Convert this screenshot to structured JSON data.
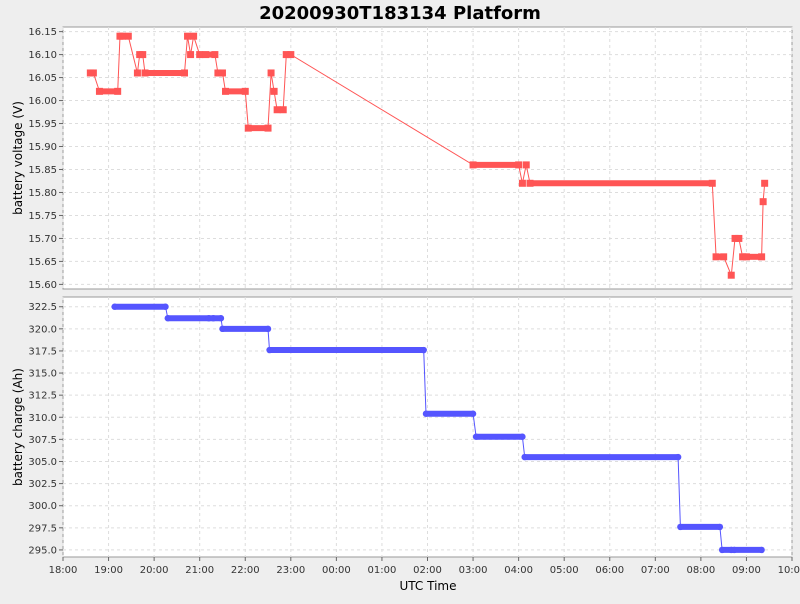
{
  "title": "20200930T183134 Platform",
  "colors": {
    "background": "#eeeeee",
    "plot_background": "#ffffff",
    "grid": "#dddddd",
    "voltage_series": "#ff5555",
    "charge_series": "#5555ff"
  },
  "chart_data": [
    {
      "type": "line",
      "ylabel": "battery voltage (V)",
      "ylim": [
        15.59,
        16.16
      ],
      "yticks": [
        "15.60",
        "15.65",
        "15.70",
        "15.75",
        "15.80",
        "15.85",
        "15.90",
        "15.95",
        "16.00",
        "16.05",
        "16.10",
        "16.15"
      ],
      "grid": true,
      "series": [
        {
          "x": [
            "18:36",
            "18:40",
            "18:48",
            "19:12",
            "19:15",
            "19:18",
            "19:26",
            "19:38",
            "19:41",
            "19:45",
            "19:48",
            "20:40",
            "20:44",
            "20:48",
            "20:52",
            "21:00",
            "21:08",
            "21:20",
            "21:24",
            "21:30",
            "21:34",
            "22:00",
            "22:04",
            "22:30",
            "22:34",
            "22:38",
            "22:42",
            "22:50",
            "22:54",
            "23:00",
            "03:00",
            "04:00",
            "04:05",
            "04:10",
            "04:15",
            "08:15",
            "08:20",
            "08:30",
            "08:40",
            "08:45",
            "08:50",
            "08:55",
            "09:00",
            "09:20",
            "09:22",
            "09:24"
          ],
          "values": [
            16.06,
            16.06,
            16.02,
            16.02,
            16.14,
            16.14,
            16.14,
            16.06,
            16.1,
            16.1,
            16.06,
            16.06,
            16.14,
            16.1,
            16.14,
            16.1,
            16.1,
            16.1,
            16.06,
            16.06,
            16.02,
            16.02,
            15.94,
            15.94,
            16.06,
            16.02,
            15.98,
            15.98,
            16.1,
            16.1,
            15.86,
            15.86,
            15.82,
            15.86,
            15.82,
            15.82,
            15.66,
            15.66,
            15.62,
            15.7,
            15.7,
            15.66,
            15.66,
            15.66,
            15.78,
            15.82
          ]
        }
      ]
    },
    {
      "type": "line",
      "ylabel": "battery charge (Ah)",
      "ylim": [
        294.2,
        323.6
      ],
      "yticks": [
        "295.0",
        "297.5",
        "300.0",
        "302.5",
        "305.0",
        "307.5",
        "310.0",
        "312.5",
        "315.0",
        "317.5",
        "320.0",
        "322.5"
      ],
      "xlabel": "UTC Time",
      "xticks": [
        "18:00",
        "19:00",
        "20:00",
        "21:00",
        "22:00",
        "23:00",
        "00:00",
        "01:00",
        "02:00",
        "03:00",
        "04:00",
        "05:00",
        "06:00",
        "07:00",
        "08:00",
        "09:00",
        "10:00"
      ],
      "grid": true,
      "series": [
        {
          "x": [
            "19:08",
            "20:15",
            "20:18",
            "21:12",
            "21:18",
            "21:28",
            "21:30",
            "22:30",
            "22:32",
            "01:55",
            "01:58",
            "03:00",
            "03:04",
            "04:05",
            "04:08",
            "07:30",
            "07:33",
            "08:25",
            "08:28",
            "08:40",
            "08:44",
            "09:20"
          ],
          "values": [
            322.5,
            322.5,
            321.2,
            321.2,
            321.2,
            321.2,
            320.0,
            320.0,
            317.6,
            317.6,
            310.4,
            310.4,
            307.8,
            307.8,
            305.5,
            305.5,
            297.6,
            297.6,
            295.0,
            295.0,
            295.0,
            295.0
          ]
        }
      ]
    }
  ]
}
